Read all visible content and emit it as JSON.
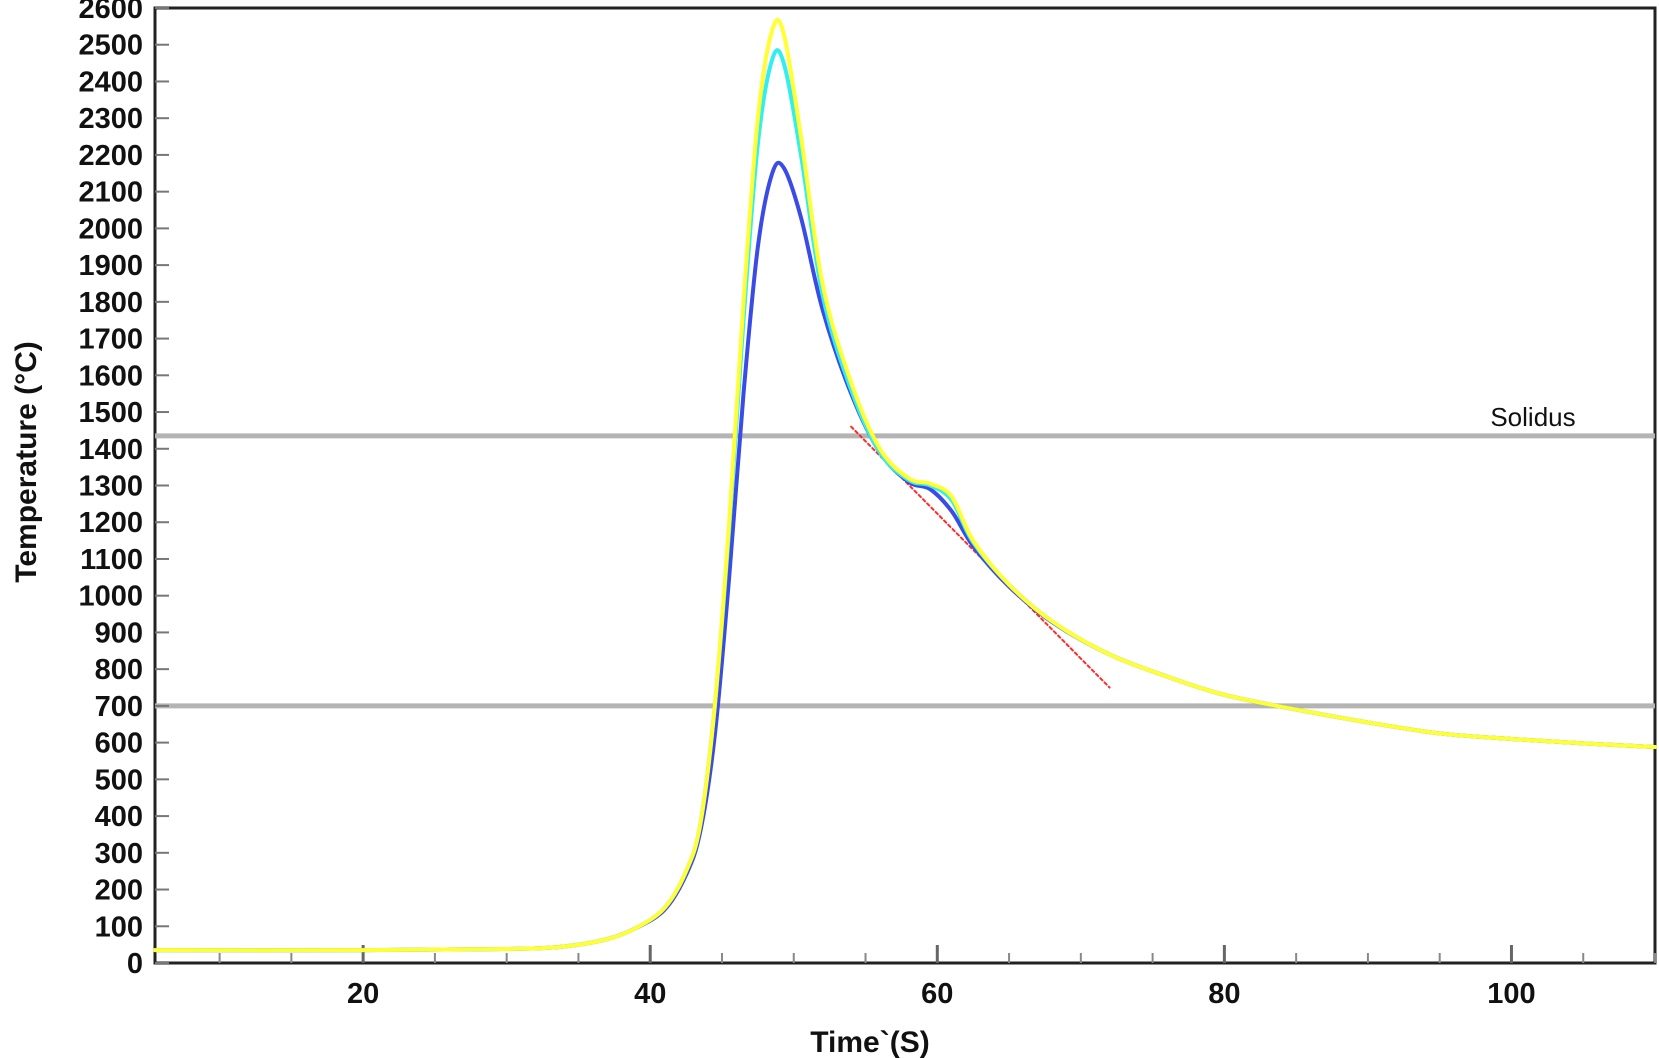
{
  "chart_data": {
    "type": "line",
    "title": "",
    "xlabel": "Time`(S)",
    "ylabel": "Temperature (°C)",
    "xlim": [
      5.5,
      110
    ],
    "ylim": [
      0,
      2600
    ],
    "x_ticks": [
      20,
      40,
      60,
      80,
      100
    ],
    "y_ticks": [
      0,
      100,
      200,
      300,
      400,
      500,
      600,
      700,
      800,
      900,
      1000,
      1100,
      1200,
      1300,
      1400,
      1500,
      1600,
      1700,
      1800,
      1900,
      2000,
      2100,
      2200,
      2300,
      2400,
      2500,
      2600
    ],
    "grid": false,
    "legend": "none",
    "reference_lines": [
      {
        "y": 1435,
        "label": "Solidus",
        "color": "#b4b4b4"
      },
      {
        "y": 700,
        "label": "",
        "color": "#b4b4b4"
      }
    ],
    "series": [
      {
        "color": "#ffff33",
        "points": [
          [
            5.5,
            35
          ],
          [
            20,
            35
          ],
          [
            30,
            38
          ],
          [
            34,
            45
          ],
          [
            37,
            65
          ],
          [
            39,
            95
          ],
          [
            41,
            150
          ],
          [
            42.5,
            250
          ],
          [
            43.5,
            380
          ],
          [
            44.5,
            700
          ],
          [
            45.5,
            1200
          ],
          [
            46.5,
            1800
          ],
          [
            47.5,
            2300
          ],
          [
            48.5,
            2540
          ],
          [
            49.3,
            2530
          ],
          [
            50.5,
            2250
          ],
          [
            52,
            1850
          ],
          [
            54,
            1580
          ],
          [
            56,
            1400
          ],
          [
            58,
            1320
          ],
          [
            59.5,
            1305
          ],
          [
            61,
            1270
          ],
          [
            62.5,
            1150
          ],
          [
            65,
            1030
          ],
          [
            68,
            930
          ],
          [
            72,
            840
          ],
          [
            76,
            780
          ],
          [
            80,
            730
          ],
          [
            85,
            690
          ],
          [
            90,
            655
          ],
          [
            95,
            625
          ],
          [
            100,
            610
          ],
          [
            105,
            598
          ],
          [
            110,
            588
          ]
        ]
      },
      {
        "color": "#33eeee",
        "points": [
          [
            5.5,
            35
          ],
          [
            20,
            35
          ],
          [
            30,
            38
          ],
          [
            34,
            45
          ],
          [
            37,
            65
          ],
          [
            39,
            95
          ],
          [
            41,
            150
          ],
          [
            42.5,
            250
          ],
          [
            43.5,
            380
          ],
          [
            44.5,
            700
          ],
          [
            45.5,
            1180
          ],
          [
            46.5,
            1750
          ],
          [
            47.5,
            2230
          ],
          [
            48.5,
            2460
          ],
          [
            49.3,
            2450
          ],
          [
            50.5,
            2200
          ],
          [
            52,
            1820
          ],
          [
            54,
            1560
          ],
          [
            56,
            1390
          ],
          [
            58,
            1315
          ],
          [
            59.5,
            1300
          ],
          [
            61,
            1260
          ],
          [
            62.5,
            1145
          ],
          [
            65,
            1030
          ],
          [
            68,
            930
          ],
          [
            72,
            840
          ],
          [
            76,
            780
          ],
          [
            80,
            730
          ],
          [
            85,
            690
          ],
          [
            90,
            655
          ],
          [
            95,
            625
          ],
          [
            100,
            610
          ],
          [
            105,
            598
          ],
          [
            110,
            588
          ]
        ]
      },
      {
        "color": "#3b4be6",
        "points": [
          [
            5.5,
            35
          ],
          [
            20,
            35
          ],
          [
            30,
            38
          ],
          [
            34,
            45
          ],
          [
            37,
            65
          ],
          [
            39,
            95
          ],
          [
            41,
            145
          ],
          [
            42.5,
            240
          ],
          [
            43.5,
            360
          ],
          [
            44.5,
            620
          ],
          [
            45.5,
            1050
          ],
          [
            46.5,
            1550
          ],
          [
            47.5,
            1950
          ],
          [
            48.5,
            2150
          ],
          [
            49.3,
            2165
          ],
          [
            50.5,
            2030
          ],
          [
            52,
            1780
          ],
          [
            54,
            1550
          ],
          [
            56,
            1390
          ],
          [
            58,
            1310
          ],
          [
            59.5,
            1290
          ],
          [
            61,
            1230
          ],
          [
            62.5,
            1135
          ],
          [
            65,
            1025
          ],
          [
            68,
            928
          ],
          [
            72,
            840
          ],
          [
            76,
            780
          ],
          [
            80,
            730
          ],
          [
            85,
            690
          ],
          [
            90,
            655
          ],
          [
            95,
            625
          ],
          [
            100,
            610
          ],
          [
            105,
            598
          ],
          [
            110,
            588
          ]
        ]
      },
      {
        "color": "#ff2a2a",
        "dashed": true,
        "points": [
          [
            54,
            1460
          ],
          [
            72,
            750
          ]
        ]
      }
    ]
  }
}
